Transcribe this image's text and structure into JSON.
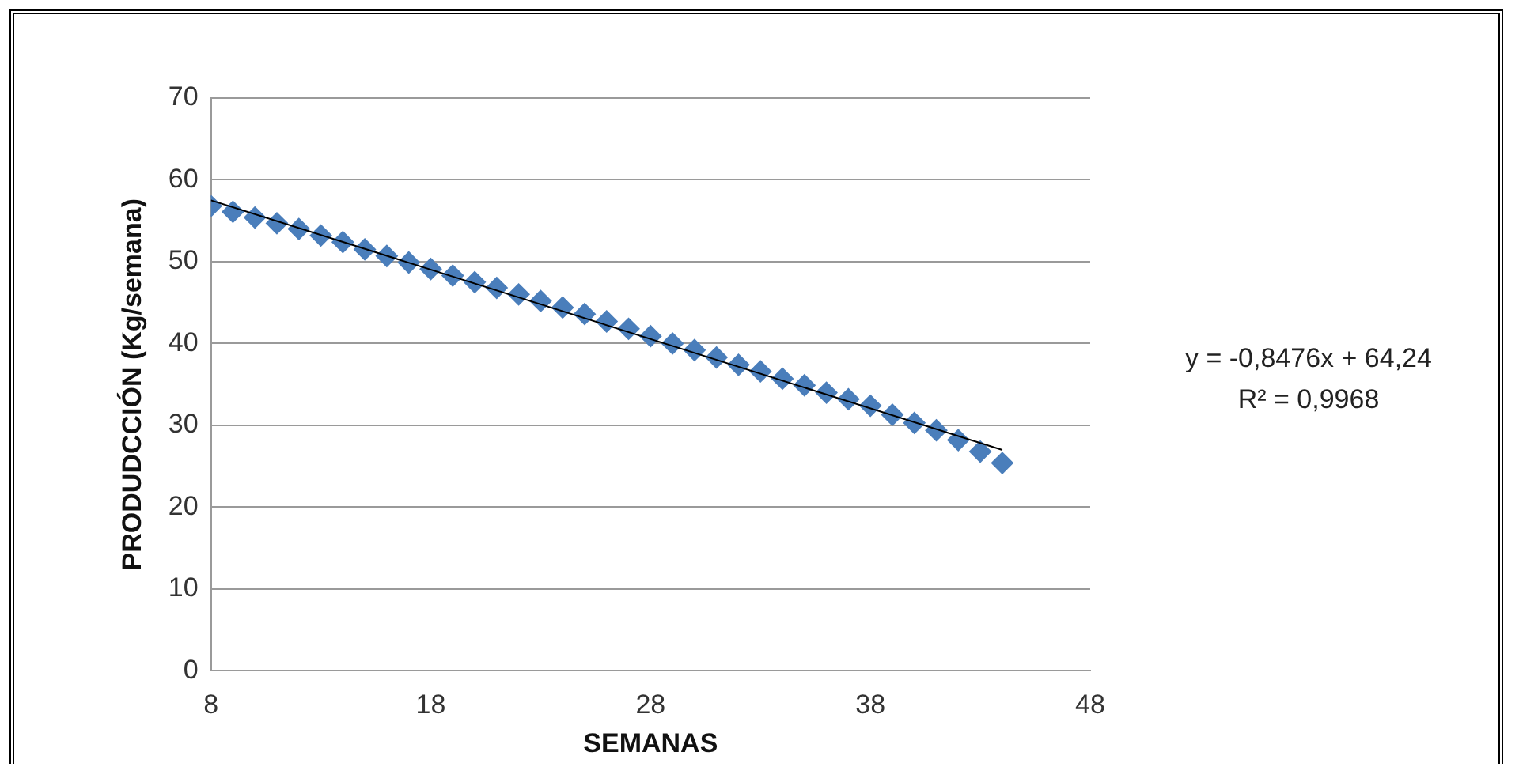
{
  "chart_data": {
    "type": "scatter",
    "xlabel": "SEMANAS",
    "ylabel": "PRODUDCCIÓN (Kg/semana)",
    "xlim": [
      8,
      48
    ],
    "xticks": [
      8,
      18,
      28,
      38,
      48
    ],
    "ylim": [
      0,
      70
    ],
    "yticks": [
      0,
      10,
      20,
      30,
      40,
      50,
      60,
      70
    ],
    "grid": "y",
    "legend": false,
    "marker": "diamond",
    "series": [
      {
        "type": "scatter",
        "color": "#4a7ebb",
        "x": [
          8,
          9,
          10,
          11,
          12,
          13,
          14,
          15,
          16,
          17,
          18,
          19,
          20,
          21,
          22,
          23,
          24,
          25,
          26,
          27,
          28,
          29,
          30,
          31,
          32,
          33,
          34,
          35,
          36,
          37,
          38,
          39,
          40,
          41,
          42,
          43,
          44
        ],
        "values": [
          56.8,
          56.1,
          55.4,
          54.7,
          54.0,
          53.2,
          52.4,
          51.5,
          50.7,
          49.9,
          49.1,
          48.3,
          47.5,
          46.8,
          46.0,
          45.2,
          44.4,
          43.6,
          42.7,
          41.8,
          40.9,
          40.0,
          39.2,
          38.3,
          37.4,
          36.6,
          35.7,
          34.9,
          34.0,
          33.2,
          32.4,
          31.3,
          30.3,
          29.4,
          28.2,
          26.8,
          25.4
        ]
      },
      {
        "type": "line",
        "color": "#000000",
        "marker": "none",
        "x": [
          8,
          44
        ],
        "values": [
          57.5,
          27.0
        ]
      }
    ],
    "annotations": [
      "y = -0,8476x + 64,24",
      "R² = 0,9968"
    ]
  }
}
